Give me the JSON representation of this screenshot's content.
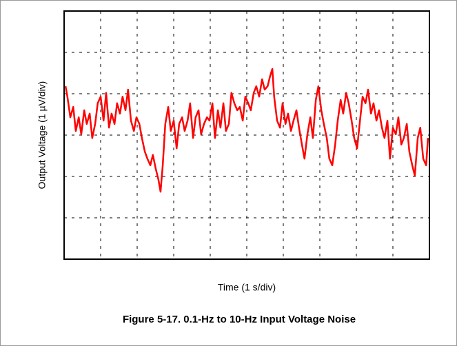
{
  "chart_data": {
    "type": "line",
    "xlabel": "Time (1 s/div)",
    "ylabel": "Output Voltage (1 µV/div)",
    "caption": "Figure 5-17. 0.1-Hz to 10-Hz Input Voltage Noise",
    "xlim": [
      0,
      10
    ],
    "ylim": [
      -3,
      3
    ],
    "xticks": [
      0,
      1,
      2,
      3,
      4,
      5,
      6,
      7,
      8,
      9,
      10
    ],
    "yticks": [
      -3,
      -2,
      -1,
      0,
      1,
      2,
      3
    ],
    "grid": true,
    "x": [
      0.04,
      0.09,
      0.17,
      0.25,
      0.32,
      0.4,
      0.47,
      0.55,
      0.62,
      0.7,
      0.77,
      0.85,
      0.92,
      1.0,
      1.08,
      1.15,
      1.23,
      1.3,
      1.38,
      1.45,
      1.53,
      1.6,
      1.68,
      1.75,
      1.83,
      1.91,
      1.98,
      2.06,
      2.13,
      2.21,
      2.28,
      2.36,
      2.43,
      2.51,
      2.58,
      2.64,
      2.7,
      2.77,
      2.85,
      2.92,
      3.0,
      3.08,
      3.15,
      3.23,
      3.3,
      3.38,
      3.45,
      3.53,
      3.6,
      3.68,
      3.75,
      3.83,
      3.91,
      3.98,
      4.06,
      4.13,
      4.21,
      4.28,
      4.36,
      4.43,
      4.51,
      4.58,
      4.66,
      4.74,
      4.81,
      4.89,
      4.96,
      5.04,
      5.11,
      5.19,
      5.26,
      5.34,
      5.42,
      5.49,
      5.57,
      5.64,
      5.7,
      5.75,
      5.83,
      5.91,
      5.98,
      6.06,
      6.13,
      6.21,
      6.28,
      6.36,
      6.43,
      6.51,
      6.58,
      6.66,
      6.74,
      6.81,
      6.89,
      6.96,
      7.04,
      7.11,
      7.19,
      7.26,
      7.34,
      7.42,
      7.49,
      7.57,
      7.64,
      7.72,
      7.79,
      7.87,
      7.94,
      8.02,
      8.09,
      8.17,
      8.25,
      8.32,
      8.4,
      8.47,
      8.55,
      8.62,
      8.7,
      8.77,
      8.85,
      8.92,
      9.0,
      9.08,
      9.15,
      9.23,
      9.3,
      9.38,
      9.45,
      9.53,
      9.6,
      9.68,
      9.75,
      9.83,
      9.91,
      9.96
    ],
    "series": [
      {
        "name": "Output Voltage",
        "color": "#ff0000",
        "values": [
          1.18,
          0.93,
          0.43,
          0.68,
          0.1,
          0.43,
          0.02,
          0.6,
          0.27,
          0.52,
          -0.07,
          0.27,
          0.77,
          0.93,
          0.35,
          1.02,
          0.18,
          0.52,
          0.27,
          0.77,
          0.52,
          0.93,
          0.6,
          1.1,
          0.35,
          0.1,
          0.43,
          0.27,
          -0.07,
          -0.4,
          -0.57,
          -0.73,
          -0.48,
          -0.82,
          -1.07,
          -1.37,
          -0.73,
          0.27,
          0.68,
          0.1,
          0.35,
          -0.32,
          0.27,
          0.43,
          0.1,
          0.35,
          0.77,
          -0.07,
          0.43,
          0.6,
          0.02,
          0.27,
          0.43,
          0.35,
          0.77,
          -0.07,
          0.6,
          0.18,
          0.77,
          0.1,
          0.27,
          1.02,
          0.77,
          0.6,
          0.68,
          0.35,
          0.93,
          0.77,
          0.6,
          1.02,
          1.18,
          0.93,
          1.35,
          1.1,
          1.18,
          1.43,
          1.6,
          0.93,
          0.35,
          0.18,
          0.77,
          0.27,
          0.52,
          0.1,
          0.35,
          0.6,
          0.18,
          -0.23,
          -0.57,
          0.02,
          0.43,
          -0.07,
          0.85,
          1.18,
          0.6,
          0.27,
          -0.07,
          -0.57,
          -0.73,
          -0.23,
          0.35,
          0.85,
          0.52,
          1.02,
          0.77,
          0.35,
          -0.07,
          -0.32,
          0.27,
          0.93,
          0.77,
          1.1,
          0.52,
          0.77,
          0.35,
          0.6,
          0.18,
          -0.07,
          0.35,
          -0.57,
          0.18,
          0.02,
          0.43,
          -0.23,
          -0.07,
          0.27,
          -0.4,
          -0.73,
          -0.98,
          -0.07,
          0.18,
          -0.57,
          -0.73,
          -0.07
        ]
      }
    ]
  }
}
